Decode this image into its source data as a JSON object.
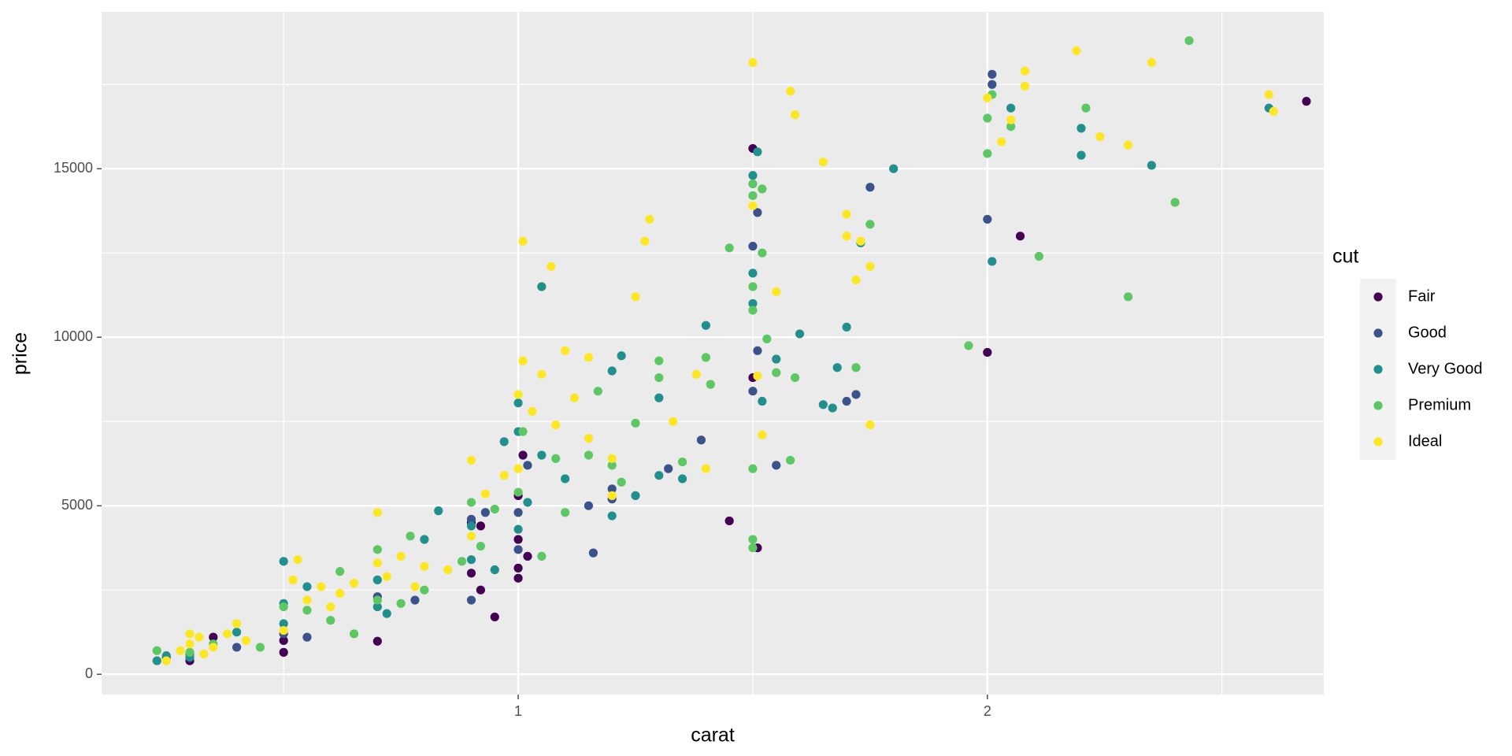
{
  "chart_data": {
    "type": "scatter",
    "x_label": "carat",
    "y_label": "price",
    "legend_title": "cut",
    "xlim": [
      0.112,
      2.717
    ],
    "ylim": [
      -603,
      19655
    ],
    "xticks": [
      1,
      2
    ],
    "yticks": [
      0,
      5000,
      10000,
      15000
    ],
    "xminor": [
      0.5,
      1.5,
      2.5
    ],
    "yminor": [
      2500,
      7500,
      12500,
      17500
    ],
    "grid": true,
    "legend": "right",
    "series": [
      {
        "name": "Fair",
        "color": "#440154",
        "x": [
          0.3,
          0.5,
          0.5,
          0.7,
          0.9,
          0.9,
          0.92,
          0.95,
          1.0,
          1.0,
          1.0,
          1.0,
          1.01,
          1.45,
          1.51,
          1.5,
          1.5,
          2.0,
          2.07,
          2.68,
          0.35,
          1.02,
          0.92
        ],
        "values": [
          400,
          650,
          1000,
          980,
          3000,
          4500,
          2500,
          1700,
          2850,
          3150,
          5300,
          4000,
          6500,
          4550,
          3750,
          8800,
          15600,
          9550,
          13000,
          17000,
          1100,
          3500,
          4400
        ]
      },
      {
        "name": "Good",
        "color": "#3B528B",
        "x": [
          0.25,
          0.3,
          0.4,
          0.5,
          0.55,
          0.7,
          0.78,
          0.9,
          0.9,
          0.93,
          1.0,
          1.0,
          1.02,
          1.15,
          1.16,
          1.2,
          1.2,
          1.32,
          1.39,
          1.5,
          1.51,
          1.5,
          1.51,
          1.7,
          1.72,
          1.75,
          2.0,
          2.01,
          2.01,
          1.55
        ],
        "values": [
          500,
          600,
          800,
          1200,
          1100,
          2300,
          2200,
          2200,
          4600,
          4800,
          3700,
          4800,
          6200,
          5000,
          3600,
          5200,
          5500,
          6100,
          6950,
          12700,
          13700,
          8400,
          9600,
          8100,
          8300,
          14450,
          13500,
          17800,
          17500,
          6200
        ]
      },
      {
        "name": "Very Good",
        "color": "#21908C",
        "x": [
          0.23,
          0.25,
          0.3,
          0.4,
          0.5,
          0.5,
          0.5,
          0.55,
          0.7,
          0.7,
          0.72,
          0.8,
          0.83,
          0.9,
          0.9,
          0.95,
          0.97,
          1.0,
          1.0,
          1.0,
          1.02,
          1.05,
          1.05,
          1.1,
          1.2,
          1.22,
          1.2,
          1.3,
          1.3,
          1.35,
          1.4,
          1.5,
          1.5,
          1.51,
          1.5,
          1.52,
          1.55,
          1.6,
          1.65,
          1.67,
          1.68,
          1.7,
          1.73,
          1.8,
          2.01,
          2.05,
          2.2,
          2.2,
          2.35,
          2.6,
          1.25
        ],
        "values": [
          400,
          550,
          500,
          1250,
          3350,
          2100,
          1500,
          2600,
          2000,
          2800,
          1800,
          4000,
          4850,
          3400,
          4400,
          3100,
          6900,
          8050,
          7200,
          4300,
          5100,
          6500,
          11500,
          5800,
          9000,
          9450,
          4700,
          5900,
          8200,
          5800,
          10350,
          14800,
          11900,
          15500,
          11000,
          8100,
          9350,
          10100,
          8000,
          7900,
          9100,
          10300,
          12800,
          15000,
          12250,
          16800,
          16200,
          15400,
          15100,
          16800,
          5300
        ]
      },
      {
        "name": "Premium",
        "color": "#5DC863",
        "x": [
          0.23,
          0.3,
          0.35,
          0.45,
          0.5,
          0.55,
          0.6,
          0.62,
          0.65,
          0.7,
          0.7,
          0.75,
          0.77,
          0.8,
          0.88,
          0.9,
          0.92,
          0.95,
          1.0,
          1.01,
          1.05,
          1.08,
          1.1,
          1.15,
          1.17,
          1.2,
          1.22,
          1.25,
          1.3,
          1.3,
          1.35,
          1.4,
          1.41,
          1.45,
          1.5,
          1.5,
          1.5,
          1.5,
          1.5,
          1.5,
          1.5,
          1.52,
          1.52,
          1.53,
          1.55,
          1.58,
          1.59,
          1.75,
          1.72,
          1.96,
          2.0,
          2.0,
          2.05,
          2.11,
          2.21,
          2.3,
          2.4,
          2.43,
          2.01
        ],
        "values": [
          700,
          650,
          900,
          800,
          2000,
          1900,
          1600,
          3050,
          1200,
          2200,
          3700,
          2100,
          4100,
          2500,
          3350,
          5100,
          3800,
          4900,
          5400,
          7200,
          3500,
          6400,
          4800,
          6500,
          8400,
          6200,
          5700,
          7450,
          9300,
          8800,
          6300,
          9400,
          8600,
          12650,
          14550,
          14200,
          11500,
          10800,
          6100,
          4000,
          3750,
          12500,
          14400,
          9950,
          8950,
          6350,
          8800,
          13350,
          9100,
          9750,
          16500,
          15450,
          16250,
          12400,
          16800,
          11200,
          14000,
          18800,
          17200
        ]
      },
      {
        "name": "Ideal",
        "color": "#FDE725",
        "x": [
          0.25,
          0.28,
          0.3,
          0.32,
          0.35,
          0.38,
          0.4,
          0.42,
          0.3,
          0.33,
          0.5,
          0.52,
          0.53,
          0.55,
          0.58,
          0.6,
          0.62,
          0.65,
          0.7,
          0.7,
          0.72,
          0.75,
          0.8,
          0.78,
          0.85,
          0.9,
          0.9,
          0.93,
          0.97,
          1.0,
          1.0,
          1.01,
          1.01,
          1.03,
          1.05,
          1.07,
          1.08,
          1.1,
          1.12,
          1.15,
          1.15,
          1.2,
          1.2,
          1.25,
          1.27,
          1.28,
          1.33,
          1.38,
          1.4,
          1.5,
          1.5,
          1.51,
          1.52,
          1.55,
          1.58,
          1.59,
          1.65,
          1.7,
          1.7,
          1.72,
          1.73,
          1.75,
          1.75,
          2.0,
          2.03,
          2.05,
          2.08,
          2.08,
          2.19,
          2.24,
          2.3,
          2.35,
          2.6,
          2.61
        ],
        "values": [
          400,
          700,
          900,
          1100,
          800,
          1200,
          1500,
          1000,
          1200,
          600,
          1300,
          2800,
          3400,
          2200,
          2600,
          2000,
          2400,
          2700,
          4800,
          3300,
          2900,
          3500,
          3200,
          2600,
          3100,
          6350,
          4100,
          5350,
          5900,
          8300,
          6100,
          9300,
          12850,
          7800,
          8900,
          12100,
          7400,
          9600,
          8200,
          9400,
          7000,
          6400,
          5300,
          11200,
          12850,
          13500,
          7500,
          8900,
          6100,
          18150,
          13900,
          8850,
          7100,
          11350,
          17300,
          16600,
          15200,
          13650,
          13000,
          11700,
          12850,
          12100,
          7400,
          17100,
          15800,
          16450,
          17900,
          17450,
          18500,
          15950,
          15700,
          18150,
          17200,
          16700
        ]
      }
    ]
  }
}
